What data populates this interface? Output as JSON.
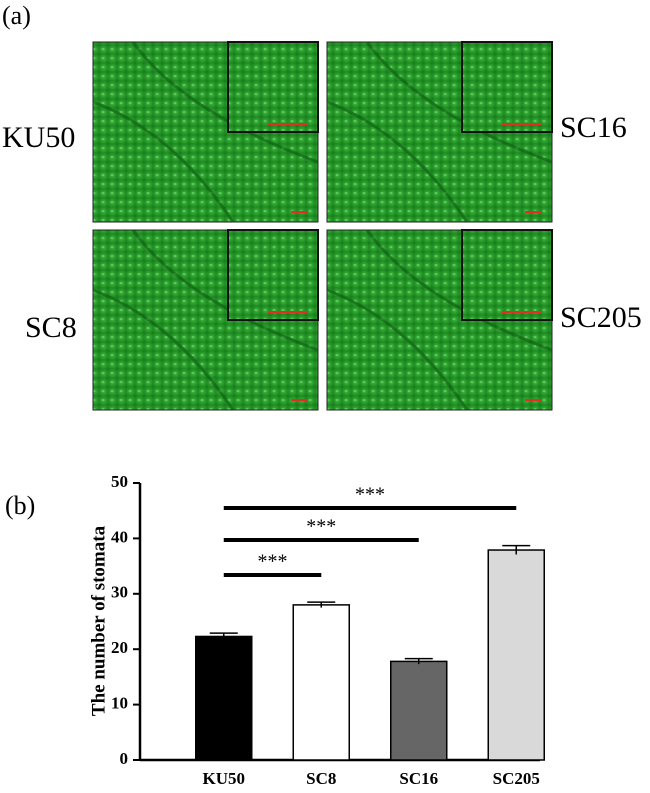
{
  "panel_a": {
    "label": "(a)",
    "images": [
      "KU50",
      "SC16",
      "SC8",
      "SC205"
    ]
  },
  "chart_data": {
    "type": "bar",
    "panel_label": "(b)",
    "y_label": "The number of stomata",
    "categories": [
      "KU50",
      "SC8",
      "SC16",
      "SC205"
    ],
    "values": [
      22.3,
      28.0,
      17.8,
      37.9
    ],
    "errors": [
      0.6,
      0.5,
      0.5,
      0.8
    ],
    "colors": [
      "#000000",
      "#ffffff",
      "#666666",
      "#d9d9d9"
    ],
    "ylim": [
      0,
      50
    ],
    "yticks": [
      0,
      10,
      20,
      30,
      40,
      50
    ],
    "comparisons": [
      {
        "label": "***",
        "categories": [
          "KU50",
          "SC8"
        ]
      },
      {
        "label": "***",
        "categories": [
          "KU50",
          "SC16"
        ]
      },
      {
        "label": "***",
        "categories": [
          "KU50",
          "SC205"
        ]
      }
    ]
  }
}
